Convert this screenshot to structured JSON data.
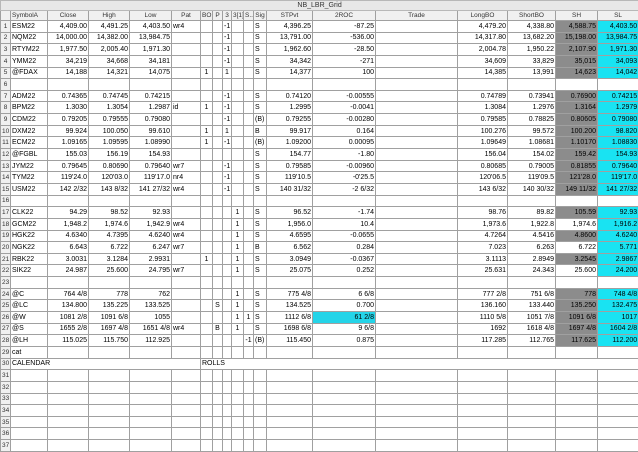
{
  "grid_name": "NB_LBR_Grid",
  "columns": [
    "SymbolA",
    "Close",
    "High",
    "Low",
    "Pat",
    "BO",
    "P",
    "3",
    "3[1]",
    "S..",
    "Sig",
    "STPvt",
    "2ROC",
    "Trade",
    "LongBO",
    "ShortBO",
    "SH",
    "SL"
  ],
  "groups": [
    {
      "rows": [
        {
          "n": "1",
          "sym": "ESM22",
          "close": "4,409.00",
          "high": "4,491.25",
          "low": "4,403.50",
          "pat": "wr4",
          "bo": "",
          "p": "",
          "c3": "-1",
          "c31": "",
          "s": "",
          "sig": "S",
          "stpvt": "4,396.25",
          "roc": "-87.25",
          "trade": "",
          "lbo": "4,479.20",
          "sbo": "4,338.80",
          "sh": "4,588.75",
          "sl": "4,403.50",
          "shs": "dk",
          "sls": "cy"
        },
        {
          "n": "2",
          "sym": "NQM22",
          "close": "14,000.00",
          "high": "14,382.00",
          "low": "13,984.75",
          "pat": "",
          "bo": "",
          "p": "",
          "c3": "-1",
          "c31": "",
          "s": "",
          "sig": "S",
          "stpvt": "13,791.00",
          "roc": "-536.00",
          "trade": "",
          "lbo": "14,317.80",
          "sbo": "13,682.20",
          "sh": "15,198.00",
          "sl": "13,984.75",
          "shs": "dk",
          "sls": "cy"
        },
        {
          "n": "3",
          "sym": "RTYM22",
          "close": "1,977.50",
          "high": "2,005.40",
          "low": "1,971.30",
          "pat": "",
          "bo": "",
          "p": "",
          "c3": "-1",
          "c31": "",
          "s": "",
          "sig": "S",
          "stpvt": "1,962.60",
          "roc": "-28.50",
          "trade": "",
          "lbo": "2,004.78",
          "sbo": "1,950.22",
          "sh": "2,107.90",
          "sl": "1,971.30",
          "shs": "dk",
          "sls": "cy"
        },
        {
          "n": "4",
          "sym": "YMM22",
          "close": "34,219",
          "high": "34,668",
          "low": "34,181",
          "pat": "",
          "bo": "",
          "p": "",
          "c3": "-1",
          "c31": "",
          "s": "",
          "sig": "S",
          "stpvt": "34,342",
          "roc": "-271",
          "trade": "",
          "lbo": "34,609",
          "sbo": "33,829",
          "sh": "35,015",
          "sl": "34,093",
          "shs": "dk",
          "sls": "cy"
        },
        {
          "n": "5",
          "sym": "@FDAX",
          "close": "14,188",
          "high": "14,321",
          "low": "14,075",
          "pat": "",
          "bo": "1",
          "p": "",
          "c3": "1",
          "c31": "",
          "s": "",
          "sig": "S",
          "stpvt": "14,377",
          "roc": "100",
          "trade": "",
          "lbo": "14,385",
          "sbo": "13,991",
          "sh": "14,623",
          "sl": "14,042",
          "shs": "dk",
          "sls": "cy"
        }
      ]
    },
    {
      "rows": [
        {
          "n": "7",
          "sym": "ADM22",
          "close": "0.74365",
          "high": "0.74745",
          "low": "0.74215",
          "pat": "",
          "bo": "",
          "p": "",
          "c3": "-1",
          "c31": "",
          "s": "",
          "sig": "S",
          "stpvt": "0.74120",
          "roc": "-0.00555",
          "trade": "",
          "lbo": "0.74789",
          "sbo": "0.73941",
          "sh": "0.76900",
          "sl": "0.74215",
          "shs": "dk",
          "sls": "cy"
        },
        {
          "n": "8",
          "sym": "BPM22",
          "close": "1.3030",
          "high": "1.3054",
          "low": "1.2987",
          "pat": "id",
          "bo": "1",
          "p": "",
          "c3": "-1",
          "c31": "",
          "s": "",
          "sig": "S",
          "stpvt": "1.2995",
          "roc": "-0.0041",
          "trade": "",
          "lbo": "1.3084",
          "sbo": "1.2976",
          "sh": "1.3164",
          "sl": "1.2979",
          "shs": "dk",
          "sls": "cy"
        },
        {
          "n": "9",
          "sym": "CDM22",
          "close": "0.79205",
          "high": "0.79555",
          "low": "0.79080",
          "pat": "",
          "bo": "",
          "p": "",
          "c3": "-1",
          "c31": "",
          "s": "",
          "sig": "(B)",
          "stpvt": "0.79255",
          "roc": "-0.00280",
          "trade": "",
          "lbo": "0.79585",
          "sbo": "0.78825",
          "sh": "0.80605",
          "sl": "0.79080",
          "shs": "dk",
          "sls": "cy"
        },
        {
          "n": "10",
          "sym": "DXM22",
          "close": "99.924",
          "high": "100.050",
          "low": "99.610",
          "pat": "",
          "bo": "1",
          "p": "",
          "c3": "1",
          "c31": "",
          "s": "",
          "sig": "B",
          "stpvt": "99.917",
          "roc": "0.164",
          "trade": "",
          "lbo": "100.276",
          "sbo": "99.572",
          "sh": "100.200",
          "sl": "98.820",
          "shs": "dk",
          "sls": "cy"
        },
        {
          "n": "11",
          "sym": "ECM22",
          "close": "1.09165",
          "high": "1.09595",
          "low": "1.08990",
          "pat": "",
          "bo": "1",
          "p": "",
          "c3": "-1",
          "c31": "",
          "s": "",
          "sig": "(B)",
          "stpvt": "1.09200",
          "roc": "0.00095",
          "trade": "",
          "lbo": "1.09649",
          "sbo": "1.08681",
          "sh": "1.10170",
          "sl": "1.08830",
          "shs": "dk",
          "sls": "cy"
        },
        {
          "n": "12",
          "sym": "@FGBL",
          "close": "155.03",
          "high": "156.19",
          "low": "154.93",
          "pat": "",
          "bo": "",
          "p": "",
          "c3": "",
          "c31": "",
          "s": "",
          "sig": "S",
          "stpvt": "154.77",
          "roc": "-1.80",
          "trade": "",
          "lbo": "156.04",
          "sbo": "154.02",
          "sh": "159.42",
          "sl": "154.93",
          "shs": "dk",
          "sls": "cy"
        },
        {
          "n": "13",
          "sym": "JYM22",
          "close": "0.79645",
          "high": "0.80690",
          "low": "0.79640",
          "pat": "wr7",
          "bo": "",
          "p": "",
          "c3": "-1",
          "c31": "",
          "s": "",
          "sig": "S",
          "stpvt": "0.79585",
          "roc": "-0.00960",
          "trade": "",
          "lbo": "0.80685",
          "sbo": "0.79005",
          "sh": "0.81855",
          "sl": "0.79640",
          "shs": "dk",
          "sls": "cy"
        },
        {
          "n": "14",
          "sym": "TYM22",
          "close": "119'24.0",
          "high": "120'03.0",
          "low": "119'17.0",
          "pat": "nr4",
          "bo": "",
          "p": "",
          "c3": "-1",
          "c31": "",
          "s": "",
          "sig": "S",
          "stpvt": "119'10.5",
          "roc": "-0'25.5",
          "trade": "",
          "lbo": "120'06.5",
          "sbo": "119'09.5",
          "sh": "121'28.0",
          "sl": "119'17.0",
          "shs": "dk",
          "sls": "cy"
        },
        {
          "n": "15",
          "sym": "USM22",
          "close": "142 2/32",
          "high": "143 8/32",
          "low": "141 27/32",
          "pat": "wr4",
          "bo": "",
          "p": "",
          "c3": "-1",
          "c31": "",
          "s": "",
          "sig": "S",
          "stpvt": "140 31/32",
          "roc": "-2 6/32",
          "trade": "",
          "lbo": "143 6/32",
          "sbo": "140 30/32",
          "sh": "149 11/32",
          "sl": "141 27/32",
          "shs": "dk",
          "sls": "cy"
        }
      ]
    },
    {
      "rows": [
        {
          "n": "17",
          "sym": "CLK22",
          "close": "94.29",
          "high": "98.52",
          "low": "92.93",
          "pat": "",
          "bo": "",
          "p": "",
          "c3": "",
          "c31": "1",
          "s": "",
          "sig": "S",
          "stpvt": "96.52",
          "roc": "-1.74",
          "trade": "",
          "lbo": "98.76",
          "sbo": "89.82",
          "sh": "105.59",
          "sl": "92.93",
          "shs": "dk",
          "sls": "cy"
        },
        {
          "n": "18",
          "sym": "GCM22",
          "close": "1,948.2",
          "high": "1,974.6",
          "low": "1,942.9",
          "pat": "wr4",
          "bo": "",
          "p": "",
          "c3": "",
          "c31": "1",
          "s": "",
          "sig": "S",
          "stpvt": "1,956.0",
          "roc": "10.4",
          "trade": "",
          "lbo": "1,973.6",
          "sbo": "1,922.8",
          "sh": "1,974.6",
          "sl": "1,916.2",
          "shs": "",
          "sls": "cy"
        },
        {
          "n": "19",
          "sym": "HGK22",
          "close": "4.6340",
          "high": "4.7395",
          "low": "4.6240",
          "pat": "wr4",
          "bo": "",
          "p": "",
          "c3": "",
          "c31": "1",
          "s": "",
          "sig": "S",
          "stpvt": "4.6595",
          "roc": "-0.0655",
          "trade": "",
          "lbo": "4.7264",
          "sbo": "4.5416",
          "sh": "4.8600",
          "sl": "4.6240",
          "shs": "dk",
          "sls": "cy"
        },
        {
          "n": "20",
          "sym": "NGK22",
          "close": "6.643",
          "high": "6.722",
          "low": "6.247",
          "pat": "wr7",
          "bo": "",
          "p": "",
          "c3": "",
          "c31": "1",
          "s": "",
          "sig": "B",
          "stpvt": "6.562",
          "roc": "0.284",
          "trade": "",
          "lbo": "7.023",
          "sbo": "6.263",
          "sh": "6.722",
          "sl": "5.771",
          "shs": "",
          "sls": "cy"
        },
        {
          "n": "21",
          "sym": "RBK22",
          "close": "3.0031",
          "high": "3.1284",
          "low": "2.9931",
          "pat": "",
          "bo": "1",
          "p": "",
          "c3": "",
          "c31": "1",
          "s": "",
          "sig": "S",
          "stpvt": "3.0949",
          "roc": "-0.0367",
          "trade": "",
          "lbo": "3.1113",
          "sbo": "2.8949",
          "sh": "3.2545",
          "sl": "2.9867",
          "shs": "dk",
          "sls": "cy"
        },
        {
          "n": "22",
          "sym": "SIK22",
          "close": "24.987",
          "high": "25.600",
          "low": "24.795",
          "pat": "wr7",
          "bo": "",
          "p": "",
          "c3": "",
          "c31": "1",
          "s": "",
          "sig": "S",
          "stpvt": "25.075",
          "roc": "0.252",
          "trade": "",
          "lbo": "25.631",
          "sbo": "24.343",
          "sh": "25.600",
          "sl": "24.200",
          "shs": "",
          "sls": "cy"
        }
      ]
    },
    {
      "rows": [
        {
          "n": "24",
          "sym": "@C",
          "close": "764 4/8",
          "high": "778",
          "low": "762",
          "pat": "",
          "bo": "",
          "p": "",
          "c3": "",
          "c31": "1",
          "s": "",
          "sig": "S",
          "stpvt": "775 4/8",
          "roc": "6 6/8",
          "trade": "",
          "lbo": "777 2/8",
          "sbo": "751 6/8",
          "sh": "778",
          "sl": "748 4/8",
          "shs": "dk",
          "sls": "cy"
        },
        {
          "n": "25",
          "sym": "@LC",
          "close": "134.800",
          "high": "135.225",
          "low": "133.525",
          "pat": "",
          "bo": "",
          "p": "S",
          "c3": "",
          "c31": "1",
          "s": "",
          "sig": "S",
          "stpvt": "134.525",
          "roc": "0.700",
          "trade": "",
          "lbo": "136.160",
          "sbo": "133.440",
          "sh": "135.250",
          "sl": "132.475",
          "shs": "dk",
          "sls": "cy"
        },
        {
          "n": "26",
          "sym": "@W",
          "close": "1081 2/8",
          "high": "1091 6/8",
          "low": "1055",
          "pat": "",
          "bo": "",
          "p": "",
          "c3": "",
          "c31": "1",
          "s": "1",
          "sig": "S",
          "stpvt": "1112 6/8",
          "roc": "61 2/8",
          "trade": "",
          "lbo": "1110 5/8",
          "sbo": "1051 7/8",
          "sh": "1091 6/8",
          "sl": "1017",
          "shs": "dk",
          "sls": "cy",
          "rocs": "cy2"
        },
        {
          "n": "27",
          "sym": "@S",
          "close": "1655 2/8",
          "high": "1697 4/8",
          "low": "1651 4/8",
          "pat": "wr4",
          "bo": "",
          "p": "B",
          "c3": "",
          "c31": "1",
          "s": "",
          "sig": "S",
          "stpvt": "1698 6/8",
          "roc": "9 6/8",
          "trade": "",
          "lbo": "1692",
          "sbo": "1618 4/8",
          "sh": "1697 4/8",
          "sl": "1604 2/8",
          "shs": "dk",
          "sls": "cy"
        },
        {
          "n": "28",
          "sym": "@LH",
          "close": "115.025",
          "high": "115.750",
          "low": "112.925",
          "pat": "",
          "bo": "",
          "p": "",
          "c3": "",
          "c31": "",
          "s": "-1",
          "sig": "(B)",
          "stpvt": "115.450",
          "roc": "0.875",
          "trade": "",
          "lbo": "117.285",
          "sbo": "112.765",
          "sh": "117.625",
          "sl": "112.200",
          "shs": "dk",
          "sls": "cy"
        }
      ]
    }
  ],
  "tail_rows": [
    {
      "n": "29",
      "sym": "cat"
    },
    {
      "n": "30",
      "sym": "CALENDAR",
      "extra": "ROLLS"
    },
    {
      "n": "31",
      "sym": ""
    },
    {
      "n": "32",
      "sym": ""
    },
    {
      "n": "33",
      "sym": ""
    },
    {
      "n": "34",
      "sym": ""
    },
    {
      "n": "35",
      "sym": ""
    },
    {
      "n": "36",
      "sym": ""
    },
    {
      "n": "37",
      "sym": ""
    }
  ]
}
